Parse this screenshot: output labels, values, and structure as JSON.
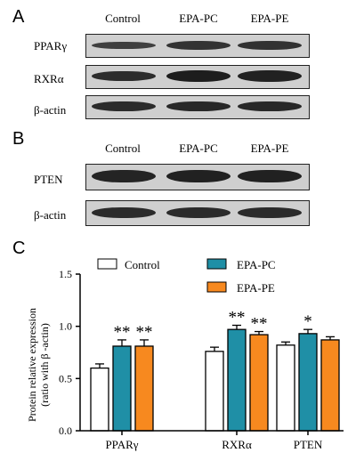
{
  "panels": {
    "a": "A",
    "b": "B",
    "c": "C"
  },
  "western_a": {
    "columns": [
      "Control",
      "EPA-PC",
      "EPA-PE"
    ],
    "rows": [
      {
        "label": "PPARγ",
        "bands": [
          0.55,
          0.7,
          0.72
        ]
      },
      {
        "label": "RXRα",
        "bands": [
          0.78,
          0.95,
          0.92
        ]
      },
      {
        "label": "β-actin",
        "bands": [
          0.8,
          0.82,
          0.82
        ]
      }
    ]
  },
  "western_b": {
    "columns": [
      "Control",
      "EPA-PC",
      "EPA-PE"
    ],
    "rows": [
      {
        "label": "PTEN",
        "bands": [
          0.88,
          0.92,
          0.9
        ]
      },
      {
        "label": "β-actin",
        "bands": [
          0.8,
          0.8,
          0.8
        ]
      }
    ]
  },
  "colors": {
    "control": "#ffffff",
    "epa_pc": "#1f8fa6",
    "epa_pe": "#f7891f",
    "band": "#1a1a1a",
    "membrane": "#cfcfcf"
  },
  "chart_data": {
    "type": "bar",
    "categories": [
      "PPARγ",
      "RXRα",
      "PTEN"
    ],
    "series": [
      {
        "name": "Control",
        "values": [
          0.6,
          0.76,
          0.82
        ],
        "errors": [
          0.04,
          0.04,
          0.03
        ],
        "sig": [
          "",
          "",
          ""
        ]
      },
      {
        "name": "EPA-PC",
        "values": [
          0.81,
          0.97,
          0.93
        ],
        "errors": [
          0.06,
          0.04,
          0.04
        ],
        "sig": [
          "**",
          "**",
          "*"
        ]
      },
      {
        "name": "EPA-PE",
        "values": [
          0.81,
          0.92,
          0.87
        ],
        "errors": [
          0.06,
          0.03,
          0.03
        ],
        "sig": [
          "**",
          "**",
          ""
        ]
      }
    ],
    "ylabel_line1": "Protein relative expression",
    "ylabel_line2": "(ratio with β -actin)",
    "ylim": [
      0.0,
      1.5
    ],
    "yticks": [
      "0.0",
      "0.5",
      "1.0",
      "1.5"
    ],
    "legend_placement": "top"
  }
}
